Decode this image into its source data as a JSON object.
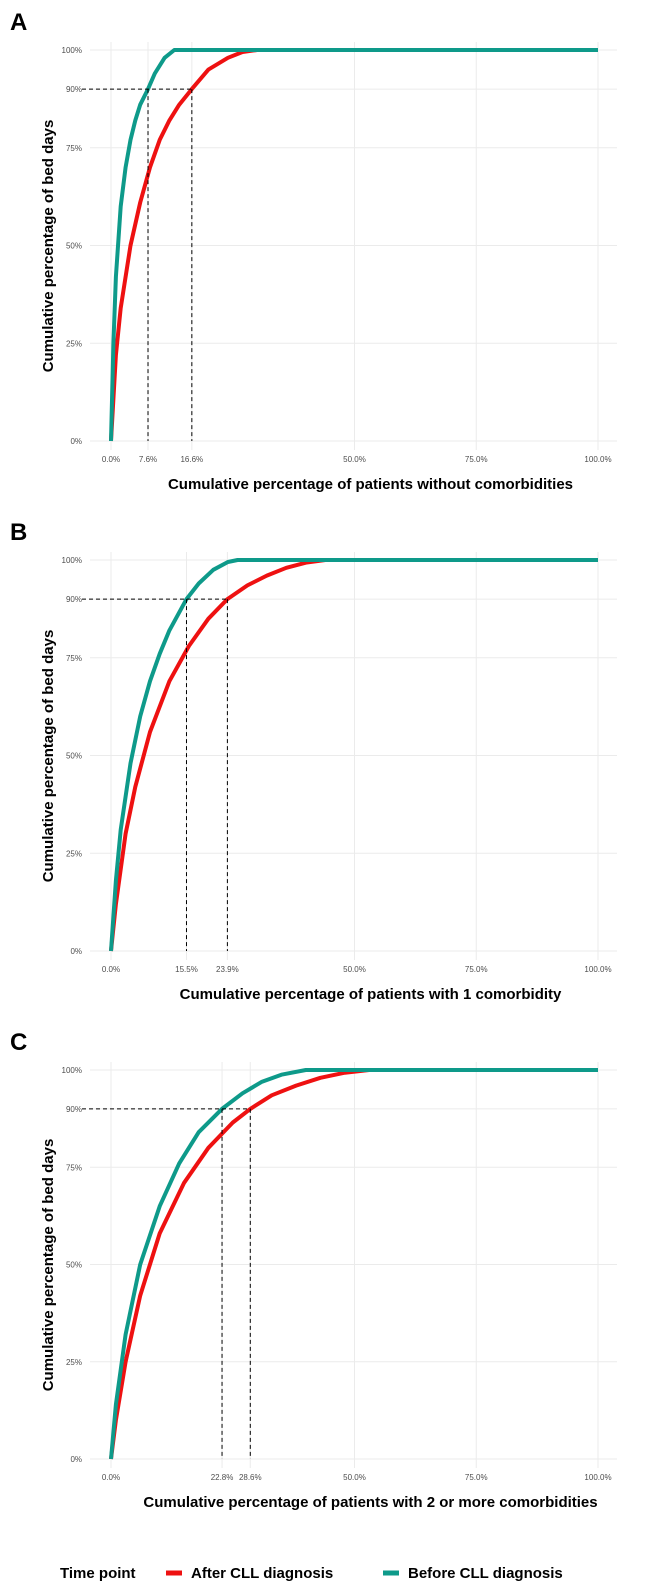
{
  "legend": {
    "title": "Time point",
    "position": "bottom"
  },
  "colors": {
    "after": "#ee1111",
    "before": "#0e9a8a",
    "grid": "#ebebeb",
    "reference": "#000000"
  },
  "chart_data": [
    {
      "type": "line",
      "panel": "A",
      "xlabel": "Cumulative percentage of patients without comorbidities",
      "ylabel": "Cumulative percentage of bed days",
      "xlim": [
        0,
        100
      ],
      "ylim": [
        0,
        100
      ],
      "x_ticks": [
        0,
        7.6,
        16.6,
        50,
        75,
        100
      ],
      "x_tick_labels": [
        "0.0%",
        "7.6%",
        "16.6%",
        "50.0%",
        "75.0%",
        "100.0%"
      ],
      "y_ticks": [
        0,
        25,
        50,
        75,
        90,
        100
      ],
      "y_tick_labels": [
        "0%",
        "25%",
        "50%",
        "75%",
        "90%",
        "100%"
      ],
      "grid": true,
      "reference_y": 90,
      "reference_x": [
        7.6,
        16.6
      ],
      "series": [
        {
          "name": "After CLL diagnosis",
          "color_key": "after",
          "x": [
            0,
            1,
            2,
            4,
            6,
            8,
            10,
            12,
            14,
            16.6,
            20,
            24,
            27,
            30,
            100
          ],
          "y": [
            0,
            22,
            34,
            50,
            61,
            70,
            77,
            82,
            86,
            90,
            95,
            98,
            99.5,
            100,
            100
          ]
        },
        {
          "name": "Before CLL diagnosis",
          "color_key": "before",
          "x": [
            0,
            0.5,
            1,
            2,
            3,
            4,
            5,
            6,
            7.6,
            9,
            11,
            13,
            100
          ],
          "y": [
            0,
            25,
            42,
            60,
            70,
            77,
            82,
            86,
            90,
            94,
            98,
            100,
            100
          ]
        }
      ]
    },
    {
      "type": "line",
      "panel": "B",
      "xlabel": "Cumulative percentage of patients with 1 comorbidity",
      "ylabel": "Cumulative percentage of bed days",
      "xlim": [
        0,
        100
      ],
      "ylim": [
        0,
        100
      ],
      "x_ticks": [
        0,
        15.5,
        23.9,
        50,
        75,
        100
      ],
      "x_tick_labels": [
        "0.0%",
        "15.5%",
        "23.9%",
        "50.0%",
        "75.0%",
        "100.0%"
      ],
      "y_ticks": [
        0,
        25,
        50,
        75,
        90,
        100
      ],
      "y_tick_labels": [
        "0%",
        "25%",
        "50%",
        "75%",
        "90%",
        "100%"
      ],
      "grid": true,
      "reference_y": 90,
      "reference_x": [
        15.5,
        23.9
      ],
      "series": [
        {
          "name": "After CLL diagnosis",
          "color_key": "after",
          "x": [
            0,
            1,
            3,
            5,
            8,
            12,
            16,
            20,
            23.9,
            28,
            32,
            36,
            40,
            44,
            100
          ],
          "y": [
            0,
            12,
            30,
            42,
            56,
            69,
            78,
            85,
            90,
            93.5,
            96,
            98,
            99.3,
            100,
            100
          ]
        },
        {
          "name": "Before CLL diagnosis",
          "color_key": "before",
          "x": [
            0,
            1,
            2,
            4,
            6,
            8,
            10,
            12,
            15.5,
            18,
            21,
            24,
            26,
            100
          ],
          "y": [
            0,
            18,
            31,
            48,
            60,
            69,
            76,
            82,
            90,
            94,
            97.5,
            99.5,
            100,
            100
          ]
        }
      ]
    },
    {
      "type": "line",
      "panel": "C",
      "xlabel": "Cumulative percentage of patients with 2 or more comorbidities",
      "ylabel": "Cumulative percentage of bed days",
      "xlim": [
        0,
        100
      ],
      "ylim": [
        0,
        100
      ],
      "x_ticks": [
        0,
        22.8,
        28.6,
        50,
        75,
        100
      ],
      "x_tick_labels": [
        "0.0%",
        "22.8%",
        "28.6%",
        "50.0%",
        "75.0%",
        "100.0%"
      ],
      "y_ticks": [
        0,
        25,
        50,
        75,
        90,
        100
      ],
      "y_tick_labels": [
        "0%",
        "25%",
        "50%",
        "75%",
        "90%",
        "100%"
      ],
      "grid": true,
      "reference_y": 90,
      "reference_x": [
        22.8,
        28.6
      ],
      "series": [
        {
          "name": "After CLL diagnosis",
          "color_key": "after",
          "x": [
            0,
            1,
            3,
            6,
            10,
            15,
            20,
            25,
            28.6,
            33,
            38,
            43,
            48,
            53,
            100
          ],
          "y": [
            0,
            10,
            25,
            42,
            58,
            71,
            80,
            86.5,
            90,
            93.5,
            96,
            98,
            99.3,
            100,
            100
          ]
        },
        {
          "name": "Before CLL diagnosis",
          "color_key": "before",
          "x": [
            0,
            1,
            3,
            6,
            10,
            14,
            18,
            22.8,
            27,
            31,
            35,
            40,
            100
          ],
          "y": [
            0,
            14,
            32,
            50,
            65,
            76,
            84,
            90,
            94,
            97,
            98.8,
            100,
            100
          ]
        }
      ]
    }
  ]
}
